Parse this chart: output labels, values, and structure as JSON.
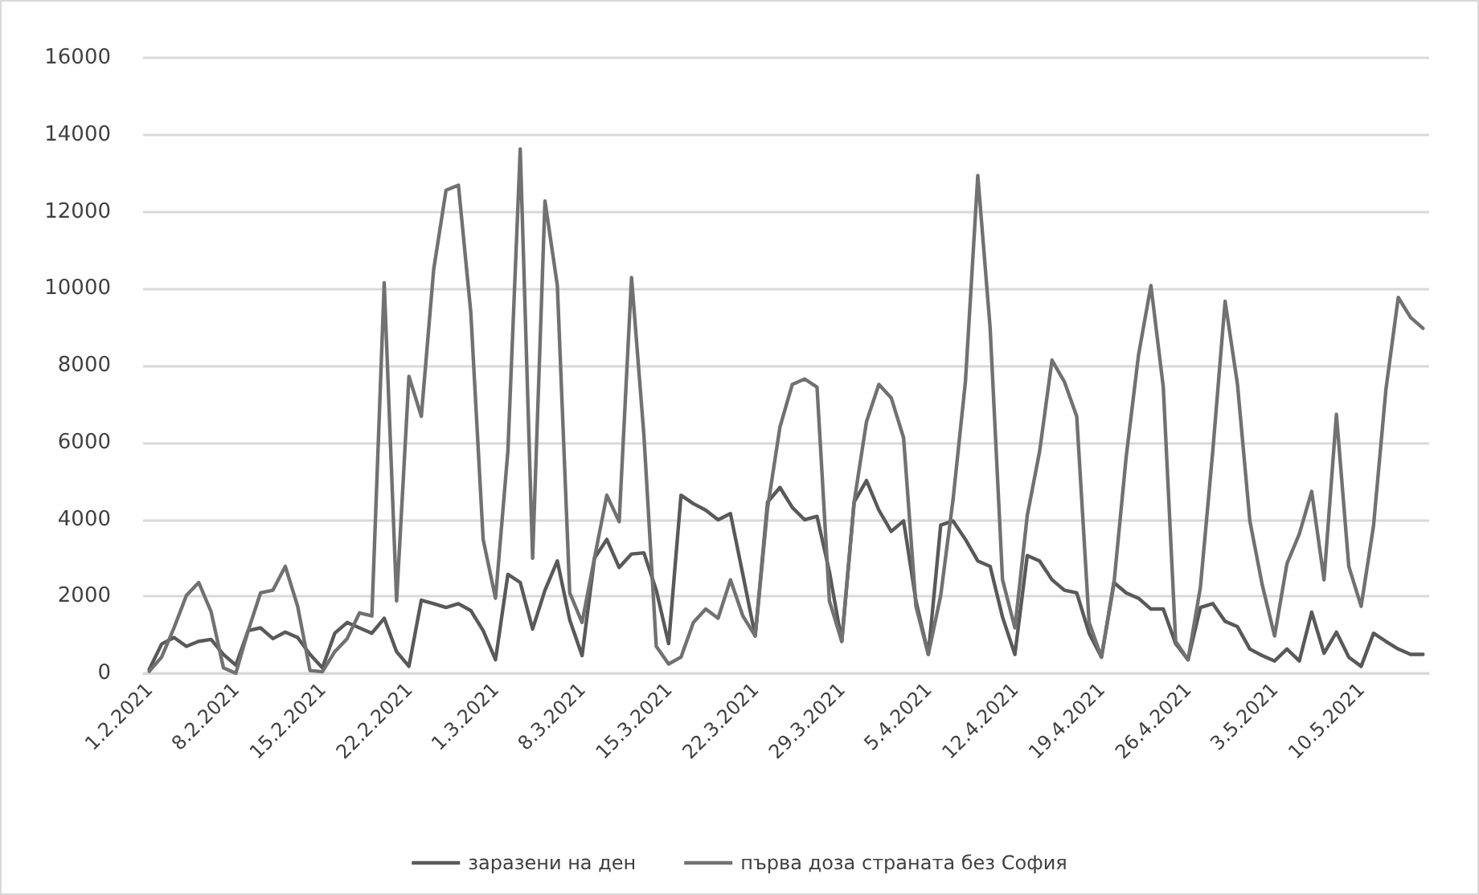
{
  "chart_data": {
    "type": "line",
    "categories": [
      "1.2.2021",
      null,
      null,
      null,
      null,
      null,
      null,
      "8.2.2021",
      null,
      null,
      null,
      null,
      null,
      null,
      "15.2.2021",
      null,
      null,
      null,
      null,
      null,
      null,
      "22.2.2021",
      null,
      null,
      null,
      null,
      null,
      null,
      "1.3.2021",
      null,
      null,
      null,
      null,
      null,
      null,
      "8.3.2021",
      null,
      null,
      null,
      null,
      null,
      null,
      "15.3.2021",
      null,
      null,
      null,
      null,
      null,
      null,
      "22.3.2021",
      null,
      null,
      null,
      null,
      null,
      null,
      "29.3.2021",
      null,
      null,
      null,
      null,
      null,
      null,
      "5.4.2021",
      null,
      null,
      null,
      null,
      null,
      null,
      "12.4.2021",
      null,
      null,
      null,
      null,
      null,
      null,
      "19.4.2021",
      null,
      null,
      null,
      null,
      null,
      null,
      "26.4.2021",
      null,
      null,
      null,
      null,
      null,
      null,
      "3.5.2021",
      null,
      null,
      null,
      null,
      null,
      null,
      "10.5.2021",
      null,
      null,
      null,
      null,
      null
    ],
    "series": [
      {
        "name": "заразени на ден",
        "color": "#595959",
        "values": [
          100,
          760,
          930,
          700,
          830,
          880,
          490,
          210,
          1110,
          1180,
          900,
          1070,
          930,
          490,
          140,
          1040,
          1320,
          1180,
          1040,
          1430,
          560,
          180,
          1900,
          1810,
          1710,
          1810,
          1630,
          1110,
          350,
          2570,
          2360,
          1150,
          2160,
          2920,
          1390,
          460,
          2990,
          3480,
          2750,
          3100,
          3130,
          2160,
          770,
          4630,
          4410,
          4240,
          3990,
          4150,
          2570,
          970,
          4450,
          4830,
          4310,
          3990,
          4080,
          2640,
          830,
          4450,
          5010,
          4240,
          3690,
          3960,
          1880,
          490,
          3850,
          3960,
          3480,
          2920,
          2780,
          1460,
          490,
          3060,
          2920,
          2430,
          2160,
          2090,
          1040,
          420,
          2360,
          2090,
          1950,
          1670,
          1670,
          770,
          350,
          1710,
          1810,
          1350,
          1210,
          630,
          460,
          320,
          630,
          320,
          1590,
          520,
          1070,
          420,
          180,
          1040,
          830,
          630,
          490,
          490
        ]
      },
      {
        "name": "първа доза страната без София",
        "color": "#717171",
        "values": [
          50,
          420,
          1180,
          2020,
          2360,
          1600,
          140,
          0,
          1110,
          2090,
          2160,
          2780,
          1740,
          70,
          40,
          560,
          900,
          1570,
          1490,
          10150,
          1880,
          7720,
          6680,
          10500,
          12560,
          12690,
          9390,
          3480,
          1950,
          5770,
          13630,
          2990,
          12280,
          10080,
          2090,
          1320,
          2990,
          4630,
          3940,
          10290,
          6190,
          700,
          240,
          420,
          1320,
          1670,
          1430,
          2430,
          1490,
          970,
          4300,
          6400,
          7510,
          7650,
          7440,
          1880,
          830,
          4450,
          6540,
          7510,
          7160,
          6120,
          1740,
          490,
          2020,
          4520,
          7580,
          12940,
          8970,
          2430,
          1180,
          4100,
          5770,
          8140,
          7580,
          6680,
          1320,
          420,
          2300,
          5630,
          8280,
          10080,
          7440,
          830,
          350,
          2230,
          5770,
          9670,
          7510,
          3960,
          2300,
          970,
          2850,
          3620,
          4730,
          2430,
          6730,
          2780,
          1740,
          3830,
          7370,
          9770,
          9250,
          8970
        ]
      }
    ],
    "ylim": [
      0,
      16000
    ],
    "yticks": [
      0,
      2000,
      4000,
      6000,
      8000,
      10000,
      12000,
      14000,
      16000
    ],
    "grid": "y",
    "legend": "bottom",
    "marker": "none",
    "line_style": "solid"
  }
}
